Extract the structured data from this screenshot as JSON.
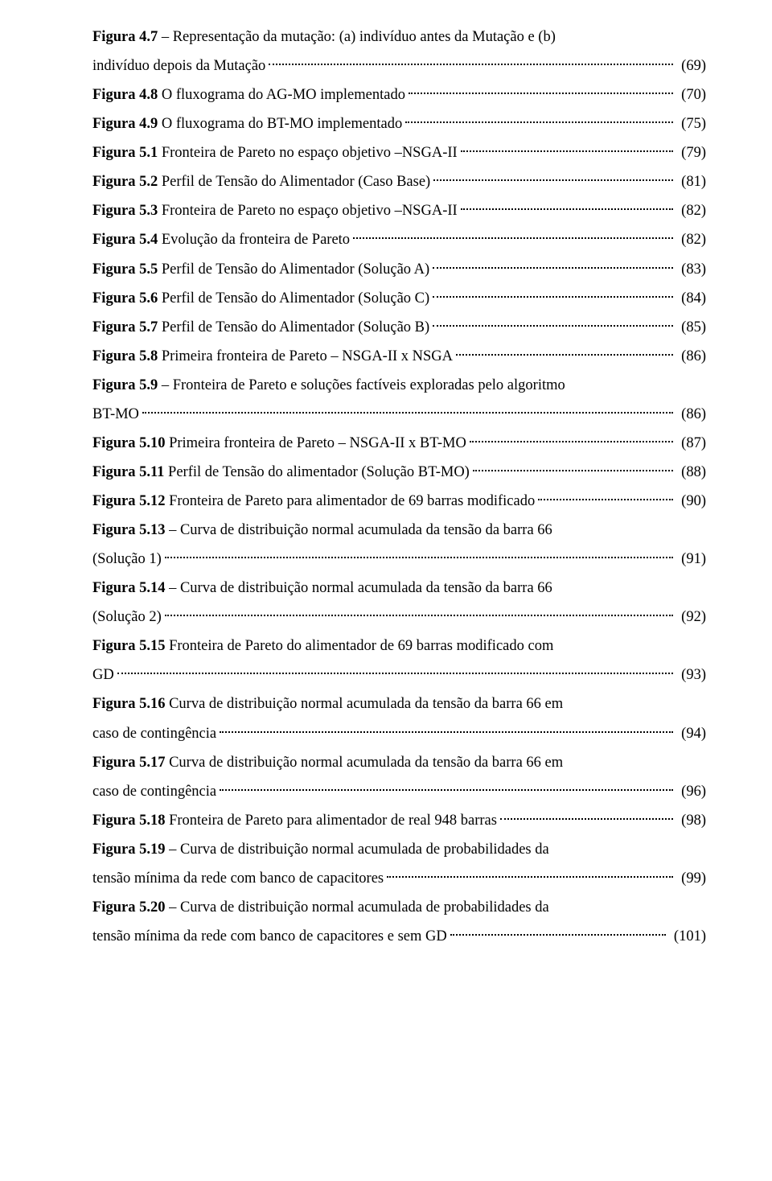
{
  "entries": [
    {
      "bold": "Figura 4.7",
      "sep": " – ",
      "first": "Representação da mutação: (a) indivíduo antes da Mutação e (b)",
      "tail": "indivíduo depois da Mutação",
      "page": "(69)",
      "multiline": true
    },
    {
      "bold": "Figura 4.8",
      "sep": " ",
      "text": "O fluxograma do AG-MO implementado",
      "page": "(70)"
    },
    {
      "bold": "Figura 4.9",
      "sep": " ",
      "text": "O fluxograma do BT-MO implementado",
      "page": "(75)"
    },
    {
      "bold": "Figura 5.1",
      "sep": " ",
      "text": "Fronteira de Pareto no espaço objetivo –NSGA-II",
      "page": "(79)"
    },
    {
      "bold": "Figura 5.2",
      "sep": " ",
      "text": "Perfil de Tensão do Alimentador (Caso Base)",
      "page": "(81)"
    },
    {
      "bold": "Figura 5.3",
      "sep": " ",
      "text": "Fronteira de Pareto no espaço objetivo –NSGA-II",
      "page": "(82)"
    },
    {
      "bold": "Figura 5.4",
      "sep": " ",
      "text": "Evolução da fronteira de Pareto",
      "page": "(82)"
    },
    {
      "bold": "Figura 5.5",
      "sep": " ",
      "text": "Perfil de Tensão do Alimentador (Solução A)",
      "page": "(83)"
    },
    {
      "bold": "Figura 5.6",
      "sep": " ",
      "text": "Perfil de Tensão do Alimentador (Solução C)",
      "page": "(84)"
    },
    {
      "bold": "Figura 5.7",
      "sep": " ",
      "text": "Perfil de Tensão do Alimentador (Solução B)",
      "page": "(85)"
    },
    {
      "bold": "Figura 5.8",
      "sep": " ",
      "text": "Primeira fronteira de Pareto – NSGA-II x NSGA",
      "page": "(86)"
    },
    {
      "bold": "Figura 5.9",
      "sep": " – ",
      "first": "Fronteira de Pareto e soluções factíveis exploradas pelo algoritmo",
      "tail": "BT-MO",
      "page": "(86)",
      "multiline": true
    },
    {
      "bold": "Figura 5.10",
      "sep": " ",
      "text": "Primeira fronteira de Pareto – NSGA-II x BT-MO",
      "page": "(87)"
    },
    {
      "bold": "Figura 5.11",
      "sep": " ",
      "text": "Perfil de Tensão do alimentador (Solução BT-MO)",
      "page": "(88)"
    },
    {
      "bold": "Figura 5.12",
      "sep": " ",
      "text": "Fronteira de Pareto para alimentador de 69 barras modificado",
      "page": "(90)"
    },
    {
      "bold": "Figura 5.13",
      "sep": " – ",
      "first": "Curva de distribuição normal acumulada da tensão da barra 66",
      "tail": "(Solução 1)",
      "page": "(91)",
      "multiline": true
    },
    {
      "bold": "Figura 5.14",
      "sep": " – ",
      "first": "Curva de distribuição normal acumulada da tensão da barra 66",
      "tail": "(Solução 2)",
      "page": "(92)",
      "multiline": true
    },
    {
      "bold": "Figura 5.15",
      "sep": " ",
      "first": "Fronteira de Pareto do alimentador de 69 barras modificado com",
      "tail": "GD",
      "page": "(93)",
      "multiline": true
    },
    {
      "bold": "Figura 5.16",
      "sep": " ",
      "first": "Curva de distribuição normal acumulada da tensão da barra 66 em",
      "tail": "caso de contingência",
      "page": "(94)",
      "multiline": true
    },
    {
      "bold": "Figura 5.17",
      "sep": " ",
      "first": "Curva de distribuição normal acumulada da tensão da barra 66 em",
      "tail": "caso de contingência",
      "page": "(96)",
      "multiline": true
    },
    {
      "bold": "Figura 5.18",
      "sep": " ",
      "text": "Fronteira de Pareto para alimentador de real 948 barras",
      "page": "(98)"
    },
    {
      "bold": "Figura 5.19",
      "sep": " – ",
      "first": "Curva de distribuição normal acumulada de probabilidades da",
      "tail": "tensão mínima da rede com banco de capacitores",
      "page": "(99)",
      "multiline": true
    },
    {
      "bold": "Figura 5.20",
      "sep": " – ",
      "first": "Curva de distribuição normal acumulada de probabilidades da",
      "tail": "tensão mínima da rede com banco de capacitores e sem GD",
      "page": "(101)",
      "multiline": true
    }
  ]
}
